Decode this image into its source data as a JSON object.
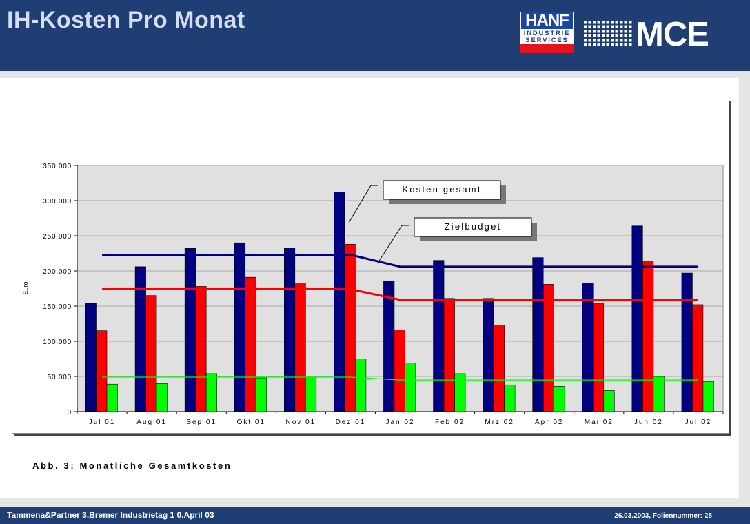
{
  "header": {
    "title": "IH-Kosten Pro Monat"
  },
  "logos": {
    "hanf_brand": "HANF",
    "hanf_line2": "INDUSTRIE",
    "hanf_line3": "SERVICES",
    "mce": "MCE"
  },
  "caption": "Abb. 3: Monatliche Gesamtkosten",
  "footer": {
    "left": "Tammena&Partner  3.Bremer Industrietag  1 0.April 03",
    "right": "26.03.2003, Foliennummer: 28"
  },
  "colors": {
    "header_bg": "#1f3f74",
    "navy": "#000080",
    "red": "#ff0000",
    "green": "#00ff00",
    "plot_bg": "#e0e0e0"
  },
  "chart_data": {
    "type": "bar",
    "title": "",
    "ylabel": "Euro",
    "xlabel": "",
    "ylim": [
      0,
      350000
    ],
    "yticks": [
      0,
      50000,
      100000,
      150000,
      200000,
      250000,
      300000,
      350000
    ],
    "ytick_labels": [
      "0",
      "50.000",
      "100.000",
      "150.000",
      "200.000",
      "250.000",
      "300.000",
      "350.000"
    ],
    "grid": true,
    "categories": [
      "Jul 01",
      "Aug 01",
      "Sep 01",
      "Okt 01",
      "Nov 01",
      "Dez 01",
      "Jan 02",
      "Feb 02",
      "Mrz 02",
      "Apr 02",
      "Mai 02",
      "Jun 02",
      "Jul 02"
    ],
    "series": [
      {
        "color": "#000080",
        "values": [
          154000,
          206000,
          232000,
          240000,
          233000,
          312000,
          186000,
          215000,
          161000,
          219000,
          183000,
          264000,
          197000
        ]
      },
      {
        "color": "#ff0000",
        "values": [
          115000,
          165000,
          178000,
          191000,
          183000,
          238000,
          116000,
          161000,
          123000,
          181000,
          154000,
          214000,
          152000
        ]
      },
      {
        "color": "#00ff00",
        "values": [
          39000,
          40000,
          54000,
          48000,
          49000,
          75000,
          69000,
          54000,
          38000,
          36000,
          30000,
          50000,
          43000
        ]
      }
    ],
    "lines": [
      {
        "color": "#000080",
        "values": [
          223000,
          223000,
          223000,
          223000,
          223000,
          223000,
          206000,
          206000,
          206000,
          206000,
          206000,
          206000,
          206000
        ]
      },
      {
        "color": "#ff0000",
        "values": [
          174000,
          174000,
          174000,
          174000,
          174000,
          174000,
          159000,
          159000,
          159000,
          159000,
          159000,
          159000,
          159000
        ]
      },
      {
        "color": "#00ff00",
        "values": [
          49000,
          49000,
          49000,
          49000,
          49000,
          49000,
          45000,
          45000,
          45000,
          45000,
          45000,
          45000,
          45000
        ]
      }
    ],
    "annotations": [
      {
        "text": "Kosten gesamt"
      },
      {
        "text": "Zielbudget"
      }
    ]
  }
}
